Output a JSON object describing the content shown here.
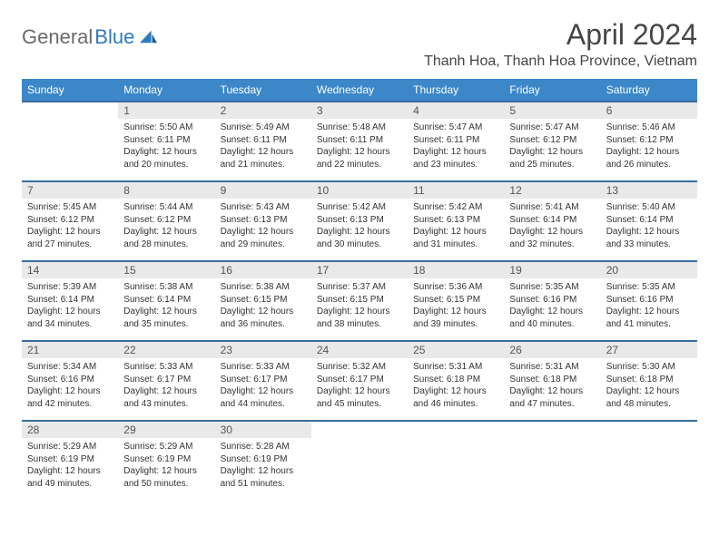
{
  "logo": {
    "part1": "General",
    "part2": "Blue"
  },
  "title": "April 2024",
  "location": "Thanh Hoa, Thanh Hoa Province, Vietnam",
  "colors": {
    "header_bg": "#3b87c8",
    "header_fg": "#ffffff",
    "row_rule": "#3b6e9b",
    "daynum_bg": "#e9e9e9",
    "text": "#333333",
    "logo_gray": "#6a6a6a",
    "logo_blue": "#2d7bbf"
  },
  "weekdays": [
    "Sunday",
    "Monday",
    "Tuesday",
    "Wednesday",
    "Thursday",
    "Friday",
    "Saturday"
  ],
  "weeks": [
    [
      null,
      {
        "n": "1",
        "sr": "Sunrise: 5:50 AM",
        "ss": "Sunset: 6:11 PM",
        "dl": "Daylight: 12 hours and 20 minutes."
      },
      {
        "n": "2",
        "sr": "Sunrise: 5:49 AM",
        "ss": "Sunset: 6:11 PM",
        "dl": "Daylight: 12 hours and 21 minutes."
      },
      {
        "n": "3",
        "sr": "Sunrise: 5:48 AM",
        "ss": "Sunset: 6:11 PM",
        "dl": "Daylight: 12 hours and 22 minutes."
      },
      {
        "n": "4",
        "sr": "Sunrise: 5:47 AM",
        "ss": "Sunset: 6:11 PM",
        "dl": "Daylight: 12 hours and 23 minutes."
      },
      {
        "n": "5",
        "sr": "Sunrise: 5:47 AM",
        "ss": "Sunset: 6:12 PM",
        "dl": "Daylight: 12 hours and 25 minutes."
      },
      {
        "n": "6",
        "sr": "Sunrise: 5:46 AM",
        "ss": "Sunset: 6:12 PM",
        "dl": "Daylight: 12 hours and 26 minutes."
      }
    ],
    [
      {
        "n": "7",
        "sr": "Sunrise: 5:45 AM",
        "ss": "Sunset: 6:12 PM",
        "dl": "Daylight: 12 hours and 27 minutes."
      },
      {
        "n": "8",
        "sr": "Sunrise: 5:44 AM",
        "ss": "Sunset: 6:12 PM",
        "dl": "Daylight: 12 hours and 28 minutes."
      },
      {
        "n": "9",
        "sr": "Sunrise: 5:43 AM",
        "ss": "Sunset: 6:13 PM",
        "dl": "Daylight: 12 hours and 29 minutes."
      },
      {
        "n": "10",
        "sr": "Sunrise: 5:42 AM",
        "ss": "Sunset: 6:13 PM",
        "dl": "Daylight: 12 hours and 30 minutes."
      },
      {
        "n": "11",
        "sr": "Sunrise: 5:42 AM",
        "ss": "Sunset: 6:13 PM",
        "dl": "Daylight: 12 hours and 31 minutes."
      },
      {
        "n": "12",
        "sr": "Sunrise: 5:41 AM",
        "ss": "Sunset: 6:14 PM",
        "dl": "Daylight: 12 hours and 32 minutes."
      },
      {
        "n": "13",
        "sr": "Sunrise: 5:40 AM",
        "ss": "Sunset: 6:14 PM",
        "dl": "Daylight: 12 hours and 33 minutes."
      }
    ],
    [
      {
        "n": "14",
        "sr": "Sunrise: 5:39 AM",
        "ss": "Sunset: 6:14 PM",
        "dl": "Daylight: 12 hours and 34 minutes."
      },
      {
        "n": "15",
        "sr": "Sunrise: 5:38 AM",
        "ss": "Sunset: 6:14 PM",
        "dl": "Daylight: 12 hours and 35 minutes."
      },
      {
        "n": "16",
        "sr": "Sunrise: 5:38 AM",
        "ss": "Sunset: 6:15 PM",
        "dl": "Daylight: 12 hours and 36 minutes."
      },
      {
        "n": "17",
        "sr": "Sunrise: 5:37 AM",
        "ss": "Sunset: 6:15 PM",
        "dl": "Daylight: 12 hours and 38 minutes."
      },
      {
        "n": "18",
        "sr": "Sunrise: 5:36 AM",
        "ss": "Sunset: 6:15 PM",
        "dl": "Daylight: 12 hours and 39 minutes."
      },
      {
        "n": "19",
        "sr": "Sunrise: 5:35 AM",
        "ss": "Sunset: 6:16 PM",
        "dl": "Daylight: 12 hours and 40 minutes."
      },
      {
        "n": "20",
        "sr": "Sunrise: 5:35 AM",
        "ss": "Sunset: 6:16 PM",
        "dl": "Daylight: 12 hours and 41 minutes."
      }
    ],
    [
      {
        "n": "21",
        "sr": "Sunrise: 5:34 AM",
        "ss": "Sunset: 6:16 PM",
        "dl": "Daylight: 12 hours and 42 minutes."
      },
      {
        "n": "22",
        "sr": "Sunrise: 5:33 AM",
        "ss": "Sunset: 6:17 PM",
        "dl": "Daylight: 12 hours and 43 minutes."
      },
      {
        "n": "23",
        "sr": "Sunrise: 5:33 AM",
        "ss": "Sunset: 6:17 PM",
        "dl": "Daylight: 12 hours and 44 minutes."
      },
      {
        "n": "24",
        "sr": "Sunrise: 5:32 AM",
        "ss": "Sunset: 6:17 PM",
        "dl": "Daylight: 12 hours and 45 minutes."
      },
      {
        "n": "25",
        "sr": "Sunrise: 5:31 AM",
        "ss": "Sunset: 6:18 PM",
        "dl": "Daylight: 12 hours and 46 minutes."
      },
      {
        "n": "26",
        "sr": "Sunrise: 5:31 AM",
        "ss": "Sunset: 6:18 PM",
        "dl": "Daylight: 12 hours and 47 minutes."
      },
      {
        "n": "27",
        "sr": "Sunrise: 5:30 AM",
        "ss": "Sunset: 6:18 PM",
        "dl": "Daylight: 12 hours and 48 minutes."
      }
    ],
    [
      {
        "n": "28",
        "sr": "Sunrise: 5:29 AM",
        "ss": "Sunset: 6:19 PM",
        "dl": "Daylight: 12 hours and 49 minutes."
      },
      {
        "n": "29",
        "sr": "Sunrise: 5:29 AM",
        "ss": "Sunset: 6:19 PM",
        "dl": "Daylight: 12 hours and 50 minutes."
      },
      {
        "n": "30",
        "sr": "Sunrise: 5:28 AM",
        "ss": "Sunset: 6:19 PM",
        "dl": "Daylight: 12 hours and 51 minutes."
      },
      null,
      null,
      null,
      null
    ]
  ]
}
